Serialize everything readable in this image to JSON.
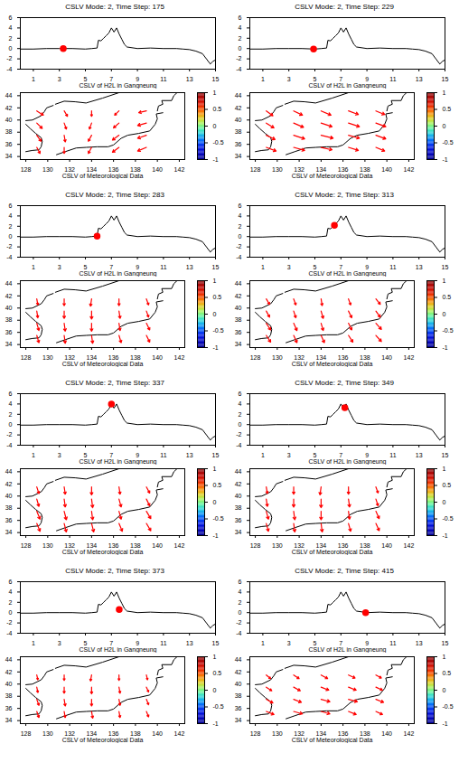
{
  "chart_data": {
    "type": "panels",
    "line_chart": {
      "type": "line",
      "xlabel": "CSLV of H2L in Gangneung",
      "xlim": [
        0,
        15
      ],
      "xticks": [
        1,
        3,
        5,
        7,
        9,
        11,
        13,
        15
      ],
      "ylim": [
        -4,
        6
      ],
      "yticks": [
        -4,
        -2,
        0,
        2,
        4,
        6
      ],
      "color": "#000000",
      "marker_color": "#ff0000",
      "x": [
        0,
        1,
        2,
        3,
        4,
        5,
        5.5,
        5.9,
        6.0,
        6.2,
        6.4,
        6.6,
        6.8,
        7.0,
        7.2,
        7.4,
        7.6,
        7.8,
        8.0,
        8.2,
        9,
        10,
        11,
        12,
        12.5,
        13,
        13.5,
        14,
        14.3,
        14.6,
        14.8,
        15
      ],
      "values": [
        -0.1,
        -0.1,
        0,
        0,
        0,
        -0.1,
        0,
        0.1,
        1.6,
        1.5,
        2.0,
        2.5,
        3.0,
        4.0,
        3.2,
        4.0,
        2.8,
        1.8,
        0.8,
        0.3,
        0,
        0.1,
        0,
        0,
        -0.1,
        -0.2,
        -0.5,
        -1.0,
        -2.0,
        -3.0,
        -2.5,
        -2.2
      ]
    },
    "map": {
      "type": "vector",
      "xlabel": "CSLV of Meteorological Data",
      "xlim": [
        127.5,
        142.5
      ],
      "xticks": [
        128,
        130,
        132,
        134,
        136,
        138,
        140,
        142
      ],
      "ylim": [
        33.5,
        44.5
      ],
      "yticks": [
        34,
        36,
        38,
        40,
        42,
        44
      ],
      "color": "#ff0000",
      "grid_lon": [
        129,
        131.5,
        134,
        136.5,
        139
      ],
      "grid_lat": [
        35.5,
        37.5,
        39.5,
        41.5
      ],
      "coastlines": [
        [
          [
            128,
            34.8
          ],
          [
            128.6,
            35.0
          ],
          [
            129.2,
            35.1
          ],
          [
            129.4,
            35.6
          ],
          [
            129.5,
            36.5
          ],
          [
            129.4,
            37.1
          ],
          [
            128.9,
            37.8
          ],
          [
            128.4,
            38.6
          ],
          [
            128,
            39.3
          ]
        ],
        [
          [
            128,
            39.9
          ],
          [
            128.6,
            40.0
          ],
          [
            129.4,
            40.7
          ],
          [
            129.7,
            41.4
          ],
          [
            129.9,
            42.0
          ],
          [
            130.5,
            42.4
          ]
        ],
        [
          [
            130.7,
            42.6
          ],
          [
            131.5,
            43.1
          ],
          [
            132.5,
            43.0
          ],
          [
            133.5,
            42.8
          ],
          [
            135.0,
            43.6
          ],
          [
            136.5,
            44.5
          ]
        ],
        [
          [
            130.8,
            34.3
          ],
          [
            131.6,
            34.8
          ],
          [
            132.6,
            35.4
          ],
          [
            133.5,
            35.5
          ],
          [
            134.5,
            35.6
          ],
          [
            135.5,
            35.6
          ],
          [
            136.0,
            35.9
          ],
          [
            136.7,
            37.0
          ],
          [
            137.3,
            37.5
          ],
          [
            138.3,
            37.8
          ],
          [
            139.3,
            38.2
          ],
          [
            139.8,
            39.3
          ],
          [
            140.0,
            40.2
          ],
          [
            139.9,
            41.0
          ],
          [
            140.5,
            41.2
          ]
        ],
        [
          [
            140.0,
            41.5
          ],
          [
            140.1,
            42.3
          ],
          [
            140.5,
            42.6
          ],
          [
            140.4,
            43.2
          ],
          [
            141.3,
            43.2
          ],
          [
            141.5,
            44.0
          ],
          [
            141.8,
            44.5
          ]
        ]
      ],
      "colorbar": {
        "lim": [
          -1,
          1
        ],
        "ticks": [
          -1,
          -0.5,
          0,
          0.5,
          1
        ]
      }
    },
    "panels": [
      {
        "title": "CSLV Mode: 2, Time Step: 175",
        "marker": {
          "x": 3.3,
          "y": 0
        },
        "wind_u": [
          [
            0.3,
            0,
            -0.3,
            -0.6,
            -0.8
          ],
          [
            0.4,
            0.1,
            -0.3,
            -0.6,
            -0.8
          ],
          [
            0.5,
            0.2,
            -0.2,
            -0.5,
            -0.8
          ],
          [
            0.6,
            0.3,
            0,
            -0.4,
            -0.7
          ]
        ],
        "wind_v": [
          [
            -1,
            -1,
            -1,
            -0.8,
            -0.6
          ],
          [
            -1,
            -1.1,
            -1,
            -0.8,
            -0.5
          ],
          [
            -0.9,
            -1,
            -1,
            -0.8,
            -0.4
          ],
          [
            -0.7,
            -0.9,
            -0.9,
            -0.7,
            -0.3
          ]
        ]
      },
      {
        "title": "CSLV Mode: 2, Time Step: 229",
        "marker": {
          "x": 4.9,
          "y": -0.1
        },
        "wind_u": [
          [
            0.9,
            1.0,
            1.0,
            0.9,
            0.8
          ],
          [
            0.8,
            1.0,
            1.1,
            1.0,
            0.9
          ],
          [
            0.7,
            0.9,
            1.0,
            1.0,
            0.9
          ],
          [
            0.6,
            0.8,
            0.9,
            0.9,
            0.8
          ]
        ],
        "wind_v": [
          [
            -0.6,
            -0.5,
            -0.4,
            -0.5,
            -0.6
          ],
          [
            -0.7,
            -0.6,
            -0.5,
            -0.5,
            -0.6
          ],
          [
            -0.8,
            -0.7,
            -0.6,
            -0.6,
            -0.6
          ],
          [
            -0.8,
            -0.7,
            -0.7,
            -0.6,
            -0.6
          ]
        ]
      },
      {
        "title": "CSLV Mode: 2, Time Step: 283",
        "marker": {
          "x": 5.9,
          "y": 0.1
        },
        "wind_u": [
          [
            0.2,
            0.1,
            0.1,
            0.2,
            0.3
          ],
          [
            0.2,
            0.1,
            0,
            0.1,
            0.3
          ],
          [
            0.1,
            0,
            0,
            0.1,
            0.2
          ],
          [
            0.1,
            0,
            -0.1,
            0,
            0.2
          ]
        ],
        "wind_v": [
          [
            -1.2,
            -1.3,
            -1.3,
            -1.2,
            -1.1
          ],
          [
            -1.2,
            -1.3,
            -1.3,
            -1.2,
            -1.1
          ],
          [
            -1.1,
            -1.2,
            -1.3,
            -1.2,
            -1.0
          ],
          [
            -1.0,
            -1.1,
            -1.2,
            -1.1,
            -1.0
          ]
        ]
      },
      {
        "title": "CSLV Mode: 2, Time Step: 313",
        "marker": {
          "x": 6.5,
          "y": 2.2
        },
        "wind_u": [
          [
            0.4,
            0.3,
            0.3,
            0.4,
            0.5
          ],
          [
            0.4,
            0.3,
            0.2,
            0.3,
            0.5
          ],
          [
            0.3,
            0.2,
            0.2,
            0.3,
            0.4
          ],
          [
            0.3,
            0.2,
            0.1,
            0.2,
            0.4
          ]
        ],
        "wind_v": [
          [
            -1.1,
            -1.2,
            -1.2,
            -1.1,
            -1.0
          ],
          [
            -1.1,
            -1.2,
            -1.2,
            -1.1,
            -1.0
          ],
          [
            -1.0,
            -1.1,
            -1.2,
            -1.1,
            -1.0
          ],
          [
            -0.9,
            -1.0,
            -1.1,
            -1.0,
            -0.9
          ]
        ]
      },
      {
        "title": "CSLV Mode: 2, Time Step: 337",
        "marker": {
          "x": 7.0,
          "y": 4.0
        },
        "wind_u": [
          [
            0.3,
            0.2,
            0.2,
            0.3,
            0.4
          ],
          [
            0.3,
            0.2,
            0.1,
            0.2,
            0.4
          ],
          [
            0.2,
            0.1,
            0.1,
            0.2,
            0.3
          ],
          [
            0.2,
            0.1,
            0,
            0.1,
            0.3
          ]
        ],
        "wind_v": [
          [
            -1.3,
            -1.4,
            -1.4,
            -1.3,
            -1.2
          ],
          [
            -1.3,
            -1.4,
            -1.4,
            -1.3,
            -1.2
          ],
          [
            -1.2,
            -1.3,
            -1.4,
            -1.3,
            -1.1
          ],
          [
            -1.1,
            -1.2,
            -1.3,
            -1.2,
            -1.0
          ]
        ]
      },
      {
        "title": "CSLV Mode: 2, Time Step: 349",
        "marker": {
          "x": 7.3,
          "y": 3.3
        },
        "wind_u": [
          [
            0.2,
            0.1,
            0.1,
            0.2,
            0.3
          ],
          [
            0.2,
            0.1,
            0,
            0.1,
            0.3
          ],
          [
            0.1,
            0,
            0,
            0.1,
            0.2
          ],
          [
            0.1,
            0,
            -0.1,
            0,
            0.2
          ]
        ],
        "wind_v": [
          [
            -1.3,
            -1.4,
            -1.4,
            -1.3,
            -1.2
          ],
          [
            -1.3,
            -1.4,
            -1.4,
            -1.3,
            -1.2
          ],
          [
            -1.2,
            -1.3,
            -1.4,
            -1.3,
            -1.1
          ],
          [
            -1.1,
            -1.2,
            -1.3,
            -1.2,
            -1.0
          ]
        ]
      },
      {
        "title": "CSLV Mode: 2, Time Step: 373",
        "marker": {
          "x": 7.6,
          "y": 0.6
        },
        "wind_u": [
          [
            0.2,
            0.1,
            0.1,
            0.1,
            0.2
          ],
          [
            0.2,
            0.1,
            0,
            0.1,
            0.2
          ],
          [
            0.1,
            0,
            0,
            0.1,
            0.2
          ],
          [
            0.1,
            0,
            -0.1,
            0,
            0.1
          ]
        ],
        "wind_v": [
          [
            -1.0,
            -1.0,
            -1.1,
            -1.0,
            -0.9
          ],
          [
            -1.0,
            -1.1,
            -1.1,
            -1.0,
            -0.9
          ],
          [
            -0.9,
            -1.0,
            -1.1,
            -1.0,
            -0.8
          ],
          [
            -0.8,
            -0.9,
            -1.0,
            -0.9,
            -0.8
          ]
        ]
      },
      {
        "title": "CSLV Mode: 2, Time Step: 415",
        "marker": {
          "x": 8.9,
          "y": 0
        },
        "wind_u": [
          [
            0.7,
            0.8,
            0.8,
            0.7,
            0.6
          ],
          [
            0.6,
            0.7,
            0.8,
            0.8,
            0.7
          ],
          [
            0.5,
            0.6,
            0.7,
            0.7,
            0.6
          ],
          [
            0.4,
            0.5,
            0.6,
            0.6,
            0.5
          ]
        ],
        "wind_v": [
          [
            -0.5,
            -0.4,
            -0.4,
            -0.5,
            -0.5
          ],
          [
            -0.6,
            -0.5,
            -0.4,
            -0.4,
            -0.5
          ],
          [
            -0.6,
            -0.6,
            -0.5,
            -0.5,
            -0.5
          ],
          [
            -0.6,
            -0.6,
            -0.6,
            -0.5,
            -0.5
          ]
        ]
      }
    ]
  }
}
